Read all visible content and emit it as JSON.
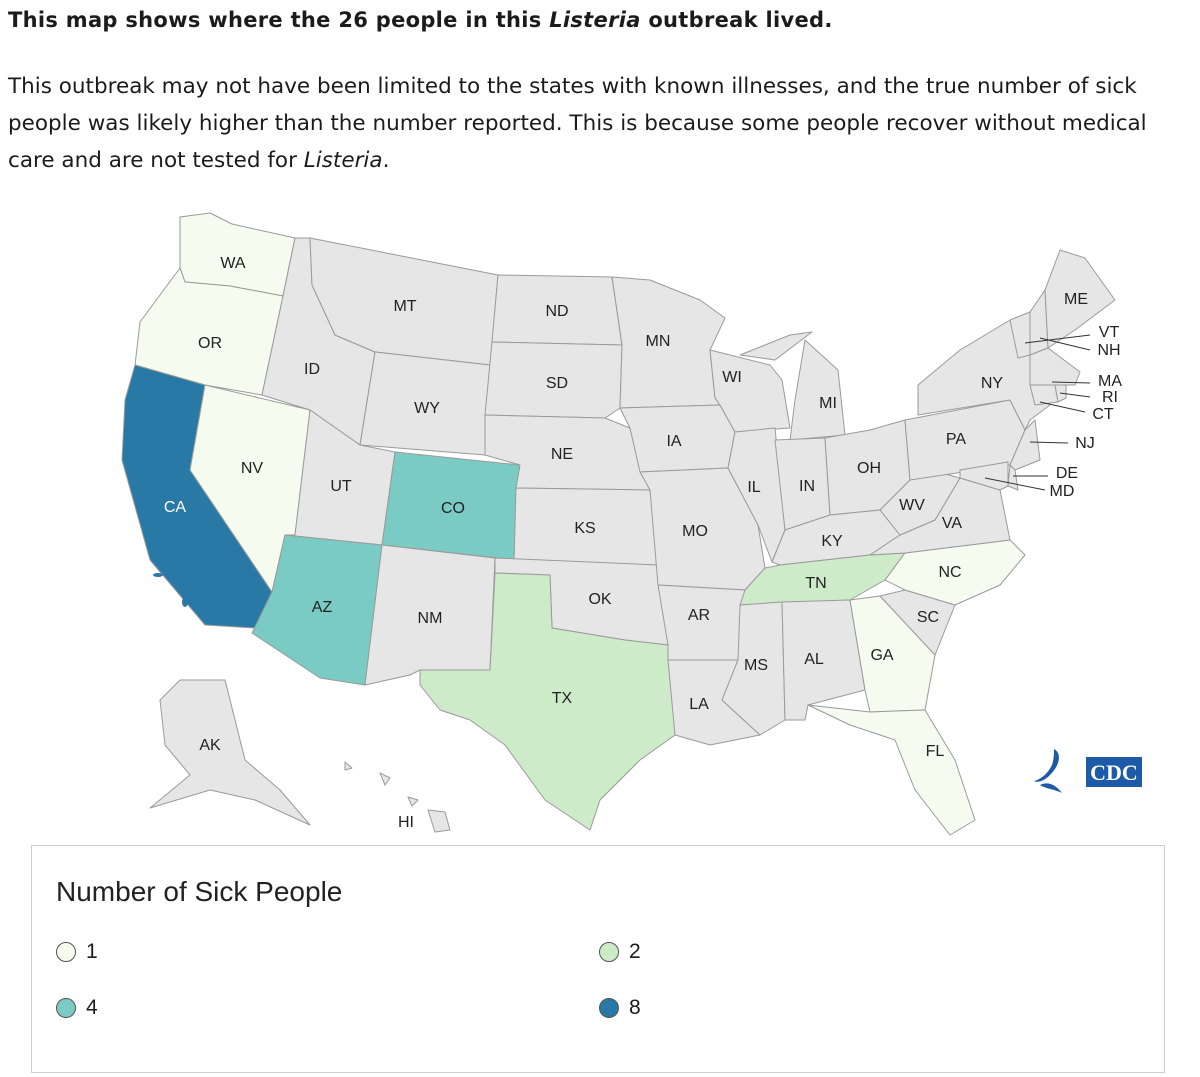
{
  "heading": {
    "pre": "This map shows where the 26 people in this ",
    "em": "Listeria",
    "post": " outbreak lived."
  },
  "paragraph": {
    "pre": "This outbreak may not have been limited to the states with known illnesses, and the true number of sick people was likely higher than the number reported. This is because some people recover without medical care and are not tested for ",
    "em": "Listeria",
    "post": "."
  },
  "colors": {
    "none": "#e6e6e6",
    "c1": "#f5fbef",
    "c2": "#cdebc9",
    "c4": "#7acbc4",
    "c8": "#2879a6",
    "border": "#9a9a9a"
  },
  "states": {
    "WA": 1,
    "OR": 1,
    "NV": 1,
    "CA": 8,
    "AZ": 4,
    "CO": 4,
    "TX": 2,
    "TN": 2,
    "NC": 1,
    "GA": 1,
    "FL": 1
  },
  "state_labels": [
    "WA",
    "OR",
    "CA",
    "NV",
    "ID",
    "MT",
    "WY",
    "UT",
    "AZ",
    "CO",
    "NM",
    "ND",
    "SD",
    "NE",
    "KS",
    "OK",
    "TX",
    "MN",
    "IA",
    "MO",
    "AR",
    "LA",
    "WI",
    "IL",
    "MI",
    "IN",
    "OH",
    "KY",
    "TN",
    "MS",
    "AL",
    "GA",
    "FL",
    "SC",
    "NC",
    "VA",
    "WV",
    "PA",
    "NY",
    "ME",
    "VT",
    "NH",
    "MA",
    "RI",
    "CT",
    "NJ",
    "DE",
    "MD",
    "AK",
    "HI"
  ],
  "legend": {
    "title": "Number of Sick People",
    "items": [
      {
        "label": "1",
        "color": "#f5fbef"
      },
      {
        "label": "2",
        "color": "#cdebc9"
      },
      {
        "label": "4",
        "color": "#7acbc4"
      },
      {
        "label": "8",
        "color": "#2879a6"
      }
    ]
  },
  "logo": {
    "text": "CDC",
    "color": "#1d5aa8"
  }
}
